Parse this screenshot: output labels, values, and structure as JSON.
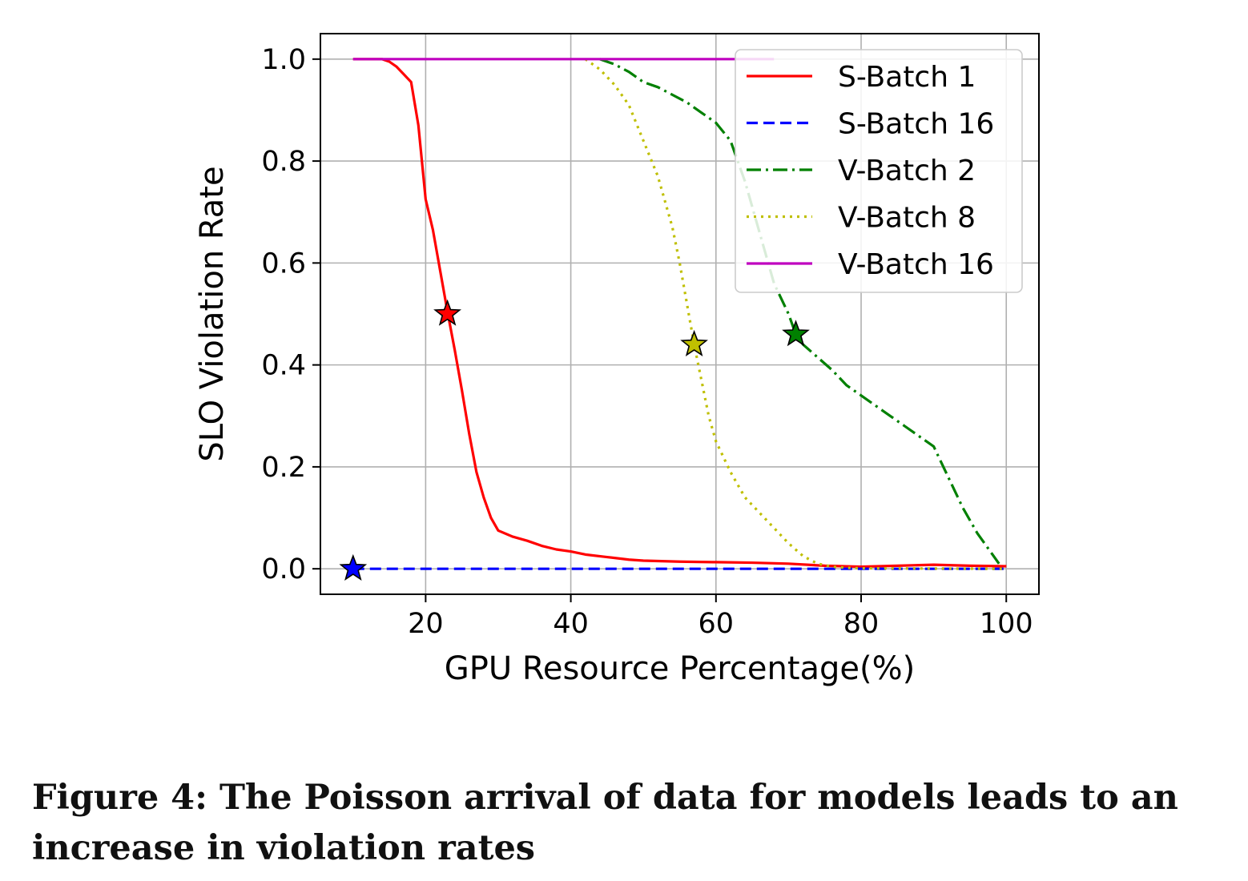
{
  "chart_data": {
    "type": "line",
    "xlabel": "GPU Resource Percentage(%)",
    "ylabel": "SLO Violation Rate",
    "xlim": [
      5.5,
      104.5
    ],
    "ylim": [
      -0.05,
      1.05
    ],
    "xticks": [
      20,
      40,
      60,
      80,
      100
    ],
    "yticks": [
      0.0,
      0.2,
      0.4,
      0.6,
      0.8,
      1.0
    ],
    "xtick_labels": [
      "20",
      "40",
      "60",
      "80",
      "100"
    ],
    "ytick_labels": [
      "0.0",
      "0.2",
      "0.4",
      "0.6",
      "0.8",
      "1.0"
    ],
    "grid": true,
    "legend_position": "top-right",
    "series": [
      {
        "name": "S-Batch 1",
        "color": "#ff0000",
        "style": "solid",
        "x": [
          10,
          14,
          15,
          16,
          17,
          18,
          19,
          20,
          21,
          22,
          23,
          24,
          25,
          26,
          27,
          28,
          29,
          30,
          32,
          34,
          36,
          38,
          40,
          42,
          45,
          48,
          50,
          55,
          60,
          65,
          70,
          75,
          80,
          85,
          90,
          95,
          100
        ],
        "y": [
          1.0,
          1.0,
          0.995,
          0.985,
          0.97,
          0.955,
          0.87,
          0.725,
          0.665,
          0.585,
          0.505,
          0.43,
          0.35,
          0.265,
          0.19,
          0.14,
          0.1,
          0.075,
          0.063,
          0.055,
          0.045,
          0.038,
          0.034,
          0.028,
          0.023,
          0.018,
          0.016,
          0.014,
          0.013,
          0.012,
          0.01,
          0.006,
          0.004,
          0.006,
          0.008,
          0.006,
          0.005
        ]
      },
      {
        "name": "S-Batch 16",
        "color": "#0000ff",
        "style": "dashed",
        "x": [
          10,
          100
        ],
        "y": [
          0.0,
          0.0
        ]
      },
      {
        "name": "V-Batch 2",
        "color": "#008000",
        "style": "dashdot",
        "x": [
          44,
          46,
          48,
          50,
          52,
          54,
          56,
          58,
          60,
          62,
          64,
          66,
          68,
          70,
          71,
          72,
          74,
          76,
          78,
          80,
          82,
          84,
          86,
          88,
          90,
          92,
          94,
          96,
          98,
          99
        ],
        "y": [
          1.0,
          0.99,
          0.975,
          0.955,
          0.945,
          0.93,
          0.915,
          0.895,
          0.875,
          0.84,
          0.76,
          0.66,
          0.56,
          0.5,
          0.46,
          0.44,
          0.415,
          0.39,
          0.36,
          0.34,
          0.32,
          0.3,
          0.28,
          0.26,
          0.24,
          0.18,
          0.12,
          0.07,
          0.03,
          0.01
        ]
      },
      {
        "name": "V-Batch 8",
        "color": "#bfbf00",
        "style": "dotted",
        "x": [
          42,
          44,
          46,
          48,
          50,
          52,
          54,
          55,
          56,
          57,
          58,
          59,
          60,
          62,
          64,
          66,
          68,
          70,
          72,
          74,
          76,
          78,
          80,
          100
        ],
        "y": [
          1.0,
          0.98,
          0.95,
          0.91,
          0.84,
          0.77,
          0.67,
          0.6,
          0.52,
          0.44,
          0.37,
          0.3,
          0.25,
          0.19,
          0.14,
          0.11,
          0.08,
          0.05,
          0.025,
          0.01,
          0.004,
          0.002,
          0.001,
          0.0
        ]
      },
      {
        "name": "V-Batch 16",
        "color": "#bf00bf",
        "style": "solid",
        "x": [
          10,
          68
        ],
        "y": [
          1.0,
          1.0
        ]
      }
    ],
    "markers": [
      {
        "x": 23,
        "y": 0.5,
        "color": "#ff0000"
      },
      {
        "x": 10,
        "y": 0.0,
        "color": "#0000ff"
      },
      {
        "x": 71,
        "y": 0.46,
        "color": "#008000"
      },
      {
        "x": 57,
        "y": 0.44,
        "color": "#bfbf00"
      }
    ]
  },
  "caption": "Figure 4: The Poisson arrival of data for models leads to an increase in violation rates"
}
